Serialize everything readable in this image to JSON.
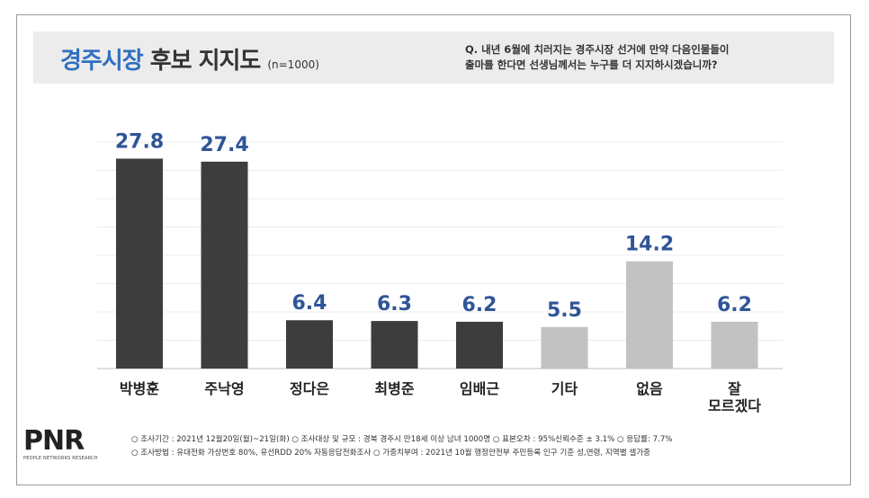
{
  "header": {
    "title_accent": "경주시장",
    "title_main": "후보 지지도",
    "sample": "(n=1000)",
    "question_line1": "Q. 내년 6월에 치러지는 경주시장 선거에 만약 다음인물들이",
    "question_line2": "출마를 한다면 선생님께서는 누구를 더 지지하시겠습니까?"
  },
  "chart_data": {
    "type": "bar",
    "title": "경주시장 후보 지지도",
    "categories": [
      "박병훈",
      "주낙영",
      "정다은",
      "최병준",
      "임배근",
      "기타",
      "없음",
      "잘\n모르겠다"
    ],
    "values": [
      27.8,
      27.4,
      6.4,
      6.3,
      6.2,
      5.5,
      14.2,
      6.2
    ],
    "value_labels": [
      "27.8",
      "27.4",
      "6.4",
      "6.3",
      "6.2",
      "5.5",
      "14.2",
      "6.2"
    ],
    "bar_colors": [
      "#3d3d3d",
      "#3d3d3d",
      "#3d3d3d",
      "#3d3d3d",
      "#3d3d3d",
      "#c2c2c2",
      "#c2c2c2",
      "#c2c2c2"
    ],
    "label_color": "#2f5597",
    "ylim": [
      0,
      30
    ],
    "grid": true,
    "xlabel": "",
    "ylabel": ""
  },
  "footer": {
    "logo": "PNR",
    "logo_sub": "PEOPLE NETWORKS RESEARCH",
    "note_line1": "○ 조사기간 : 2021년 12월20일(월)~21일(화)   ○ 조사대상 및 규모 : 경북 경주시 만18세 이상 남녀 1000명   ○ 표본오차 : 95%신뢰수준 ± 3.1%   ○ 응답률: 7.7%",
    "note_line2": "○ 조사방법 : 유대전화 가상번호 80%, 유선RDD 20% 자동응답전화조사   ○ 가중치부여 : 2021년 10월 행정안전부 주민등록 인구 기준 성,연령, 지역별 셀가중"
  }
}
